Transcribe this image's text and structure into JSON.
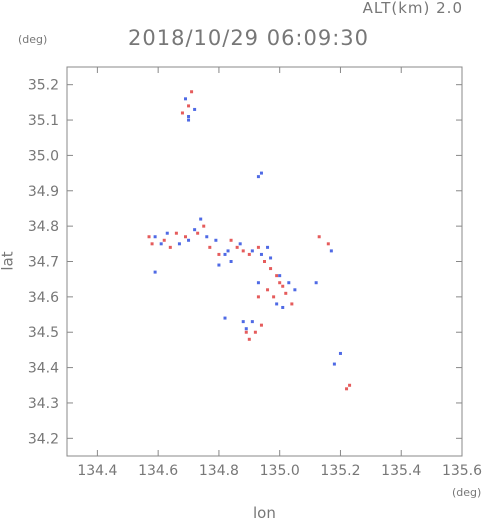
{
  "header": {
    "altitude_label": "ALT(km) 2.0",
    "datetime": "2018/10/29 06:09:30"
  },
  "chart_data": {
    "type": "scatter",
    "title": "2018/10/29 06:09:30",
    "xlabel": "lon",
    "ylabel": "lat",
    "x_unit": "(deg)",
    "y_unit": "(deg)",
    "xlim": [
      134.3,
      135.6
    ],
    "ylim": [
      34.15,
      35.25
    ],
    "x_ticks": [
      134.4,
      134.6,
      134.8,
      135.0,
      135.2,
      135.4,
      135.6
    ],
    "y_ticks": [
      34.2,
      34.3,
      34.4,
      34.5,
      34.6,
      34.7,
      34.8,
      34.9,
      35.0,
      35.1,
      35.2
    ],
    "x_tick_labels": [
      "134.4",
      "134.6",
      "134.8",
      "135.0",
      "135.2",
      "135.4",
      "135.6"
    ],
    "y_tick_labels": [
      "34.2",
      "34.3",
      "34.4",
      "34.5",
      "34.6",
      "34.7",
      "34.8",
      "34.9",
      "35.0",
      "35.1",
      "35.2"
    ],
    "grid": false,
    "colors": {
      "positive": "#e04040",
      "negative": "#3050e0"
    },
    "series": [
      {
        "color": "#e04040",
        "points": [
          [
            134.68,
            35.12
          ],
          [
            134.7,
            35.14
          ],
          [
            134.71,
            35.18
          ],
          [
            134.57,
            34.77
          ],
          [
            134.58,
            34.75
          ],
          [
            134.62,
            34.76
          ],
          [
            134.64,
            34.74
          ],
          [
            134.66,
            34.78
          ],
          [
            134.75,
            34.8
          ],
          [
            134.77,
            34.74
          ],
          [
            134.8,
            34.72
          ],
          [
            134.84,
            34.76
          ],
          [
            134.86,
            34.74
          ],
          [
            134.88,
            34.73
          ],
          [
            134.9,
            34.72
          ],
          [
            134.93,
            34.74
          ],
          [
            134.95,
            34.7
          ],
          [
            134.97,
            34.68
          ],
          [
            134.99,
            34.66
          ],
          [
            135.01,
            34.63
          ],
          [
            134.98,
            34.6
          ],
          [
            135.02,
            34.61
          ],
          [
            135.04,
            34.58
          ],
          [
            134.93,
            34.6
          ],
          [
            134.89,
            34.5
          ],
          [
            134.9,
            34.48
          ],
          [
            134.92,
            34.5
          ],
          [
            134.94,
            34.52
          ],
          [
            135.13,
            34.77
          ],
          [
            135.16,
            34.75
          ],
          [
            135.23,
            34.35
          ],
          [
            135.22,
            34.34
          ],
          [
            134.73,
            34.78
          ],
          [
            134.69,
            34.77
          ],
          [
            135.0,
            34.64
          ],
          [
            134.96,
            34.62
          ]
        ]
      },
      {
        "color": "#3050e0",
        "points": [
          [
            134.69,
            35.16
          ],
          [
            134.7,
            35.11
          ],
          [
            134.72,
            35.13
          ],
          [
            134.7,
            35.1
          ],
          [
            134.93,
            34.94
          ],
          [
            134.94,
            34.95
          ],
          [
            134.59,
            34.77
          ],
          [
            134.61,
            34.75
          ],
          [
            134.63,
            34.78
          ],
          [
            134.67,
            34.75
          ],
          [
            134.7,
            34.76
          ],
          [
            134.72,
            34.79
          ],
          [
            134.74,
            34.82
          ],
          [
            134.76,
            34.77
          ],
          [
            134.79,
            34.76
          ],
          [
            134.82,
            34.72
          ],
          [
            134.84,
            34.7
          ],
          [
            134.87,
            34.75
          ],
          [
            134.91,
            34.73
          ],
          [
            134.94,
            34.72
          ],
          [
            134.96,
            34.74
          ],
          [
            134.97,
            34.71
          ],
          [
            135.0,
            34.66
          ],
          [
            135.03,
            34.64
          ],
          [
            135.05,
            34.62
          ],
          [
            134.99,
            34.58
          ],
          [
            135.01,
            34.57
          ],
          [
            134.89,
            34.51
          ],
          [
            134.91,
            34.53
          ],
          [
            134.88,
            34.53
          ],
          [
            134.82,
            34.54
          ],
          [
            135.12,
            34.64
          ],
          [
            135.17,
            34.73
          ],
          [
            135.18,
            34.41
          ],
          [
            135.2,
            34.44
          ],
          [
            134.59,
            34.67
          ],
          [
            134.93,
            34.64
          ],
          [
            134.8,
            34.69
          ],
          [
            134.83,
            34.73
          ]
        ]
      }
    ]
  }
}
